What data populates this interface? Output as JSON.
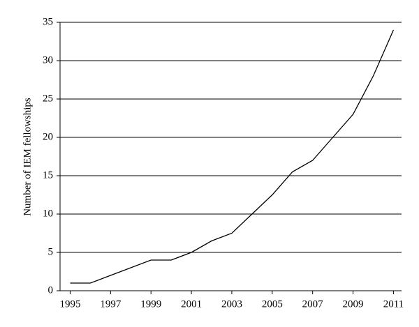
{
  "chart_data": {
    "type": "line",
    "y_label": "Number of IEM fellowships",
    "x": [
      1995,
      1996,
      1997,
      1998,
      1999,
      2000,
      2001,
      2002,
      2003,
      2004,
      2005,
      2006,
      2007,
      2008,
      2009,
      2010,
      2011
    ],
    "series": [
      {
        "name": "IEM fellowships",
        "color": "#000000",
        "values": [
          1,
          1,
          2,
          3,
          4,
          4,
          5,
          6.5,
          7.5,
          10,
          12.5,
          15.5,
          17,
          20,
          23,
          28,
          34
        ]
      }
    ],
    "xlim": [
      1994.5,
      2011.4
    ],
    "xticks": [
      1995,
      1997,
      1999,
      2001,
      2003,
      2005,
      2007,
      2009,
      2011
    ],
    "ylim": [
      0,
      35
    ],
    "yticks": [
      0,
      5,
      10,
      15,
      20,
      25,
      30,
      35
    ],
    "grid": true
  }
}
